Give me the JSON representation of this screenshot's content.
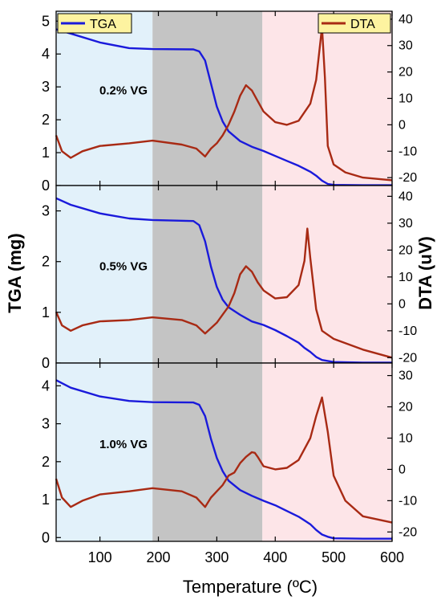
{
  "chart_data": {
    "type": "line",
    "xlabel": "Temperature (ºC)",
    "ylabel_left": "TGA (mg)",
    "ylabel_right": "DTA (uV)",
    "xlim": [
      25,
      600
    ],
    "x_ticks": [
      "100",
      "200",
      "300",
      "400",
      "500",
      "600"
    ],
    "legend": [
      {
        "name": "TGA",
        "color": "#1a1adb",
        "placement": "top-left"
      },
      {
        "name": "DTA",
        "color": "#a82a14",
        "placement": "top-right"
      }
    ],
    "shaded_regions": [
      {
        "x": [
          25,
          190
        ],
        "color": "#e2f1fa"
      },
      {
        "x": [
          190,
          378
        ],
        "color": "#c4c4c4"
      },
      {
        "x": [
          378,
          600
        ],
        "color": "#fde5e8"
      }
    ],
    "panels": [
      {
        "annotation": "0.2% VG",
        "left_ylim": [
          0,
          5.3
        ],
        "left_ticks": [
          "0",
          "1",
          "2",
          "3",
          "4",
          "5"
        ],
        "right_ylim": [
          -23,
          43
        ],
        "right_ticks": [
          "-20",
          "-10",
          "0",
          "10",
          "20",
          "30",
          "40"
        ],
        "series": [
          {
            "name": "TGA",
            "x": [
              25,
              50,
              100,
              150,
              190,
              260,
              270,
              280,
              290,
              300,
              310,
              320,
              340,
              360,
              380,
              400,
              420,
              440,
              460,
              470,
              480,
              490,
              500,
              550,
              600
            ],
            "values": [
              4.75,
              4.62,
              4.35,
              4.18,
              4.15,
              4.14,
              4.08,
              3.8,
              3.1,
              2.4,
              1.95,
              1.65,
              1.35,
              1.18,
              1.05,
              0.9,
              0.75,
              0.6,
              0.42,
              0.3,
              0.15,
              0.05,
              0.02,
              0.01,
              0.01
            ]
          },
          {
            "name": "DTA",
            "x": [
              25,
              35,
              50,
              70,
              100,
              150,
              190,
              240,
              265,
              280,
              290,
              300,
              310,
              320,
              330,
              340,
              350,
              360,
              370,
              380,
              400,
              420,
              440,
              460,
              470,
              480,
              485,
              490,
              500,
              520,
              550,
              600
            ],
            "values": [
              -4,
              -10,
              -12.5,
              -10,
              -8,
              -7,
              -6,
              -7.5,
              -9,
              -12,
              -9,
              -7,
              -4,
              0,
              5,
              11,
              15,
              13,
              9,
              5,
              1,
              0,
              1.5,
              8,
              17,
              37,
              18,
              -8,
              -15,
              -18,
              -20,
              -21
            ]
          }
        ]
      },
      {
        "annotation": "0.5% VG",
        "left_ylim": [
          0,
          3.5
        ],
        "left_ticks": [
          "0",
          "1",
          "2",
          "3"
        ],
        "right_ylim": [
          -22,
          44
        ],
        "right_ticks": [
          "-20",
          "-10",
          "0",
          "10",
          "20",
          "30",
          "40"
        ],
        "series": [
          {
            "name": "TGA",
            "x": [
              25,
              50,
              100,
              150,
              190,
              260,
              270,
              280,
              290,
              300,
              310,
              320,
              340,
              360,
              380,
              400,
              420,
              440,
              450,
              460,
              470,
              480,
              500,
              550,
              600
            ],
            "values": [
              3.25,
              3.12,
              2.95,
              2.85,
              2.82,
              2.8,
              2.72,
              2.4,
              1.9,
              1.5,
              1.25,
              1.1,
              0.95,
              0.82,
              0.75,
              0.65,
              0.53,
              0.4,
              0.3,
              0.22,
              0.12,
              0.06,
              0.02,
              0.01,
              0.01
            ]
          },
          {
            "name": "DTA",
            "x": [
              25,
              35,
              50,
              70,
              100,
              150,
              190,
              240,
              265,
              280,
              290,
              300,
              310,
              320,
              330,
              340,
              350,
              360,
              370,
              380,
              400,
              420,
              440,
              450,
              455,
              460,
              470,
              480,
              500,
              550,
              600
            ],
            "values": [
              -3,
              -8,
              -10,
              -8,
              -6.5,
              -6,
              -5,
              -6,
              -8,
              -11,
              -9,
              -7,
              -4,
              -1,
              4,
              11,
              14,
              12,
              8,
              5,
              2,
              2.5,
              7,
              16,
              28,
              17,
              -2,
              -10,
              -13,
              -17,
              -20
            ]
          }
        ]
      },
      {
        "annotation": "1.0% VG",
        "left_ylim": [
          -0.1,
          4.6
        ],
        "left_ticks": [
          "0",
          "1",
          "2",
          "3",
          "4"
        ],
        "right_ylim": [
          -23,
          34
        ],
        "right_ticks": [
          "-20",
          "-10",
          "0",
          "10",
          "20",
          "30"
        ],
        "series": [
          {
            "name": "TGA",
            "x": [
              25,
              50,
              100,
              150,
              190,
              260,
              270,
              280,
              290,
              300,
              310,
              320,
              340,
              360,
              380,
              400,
              420,
              440,
              460,
              470,
              480,
              490,
              500,
              550,
              600
            ],
            "values": [
              4.15,
              3.95,
              3.72,
              3.6,
              3.57,
              3.56,
              3.5,
              3.2,
              2.6,
              2.1,
              1.75,
              1.5,
              1.25,
              1.1,
              0.97,
              0.85,
              0.7,
              0.55,
              0.35,
              0.2,
              0.08,
              0.02,
              -0.02,
              -0.03,
              -0.03
            ]
          },
          {
            "name": "DTA",
            "x": [
              25,
              35,
              50,
              70,
              100,
              150,
              190,
              240,
              265,
              280,
              290,
              300,
              310,
              320,
              330,
              340,
              350,
              360,
              365,
              370,
              380,
              400,
              420,
              440,
              460,
              470,
              480,
              490,
              500,
              520,
              550,
              600
            ],
            "values": [
              -3,
              -9,
              -12,
              -10,
              -8,
              -7,
              -6,
              -7,
              -9,
              -12,
              -9,
              -7,
              -5,
              -2,
              -1,
              2,
              4,
              5.5,
              5.3,
              4,
              1,
              0,
              0.5,
              3,
              10,
              17,
              23,
              12,
              -2,
              -10,
              -15,
              -17
            ]
          }
        ]
      }
    ]
  }
}
